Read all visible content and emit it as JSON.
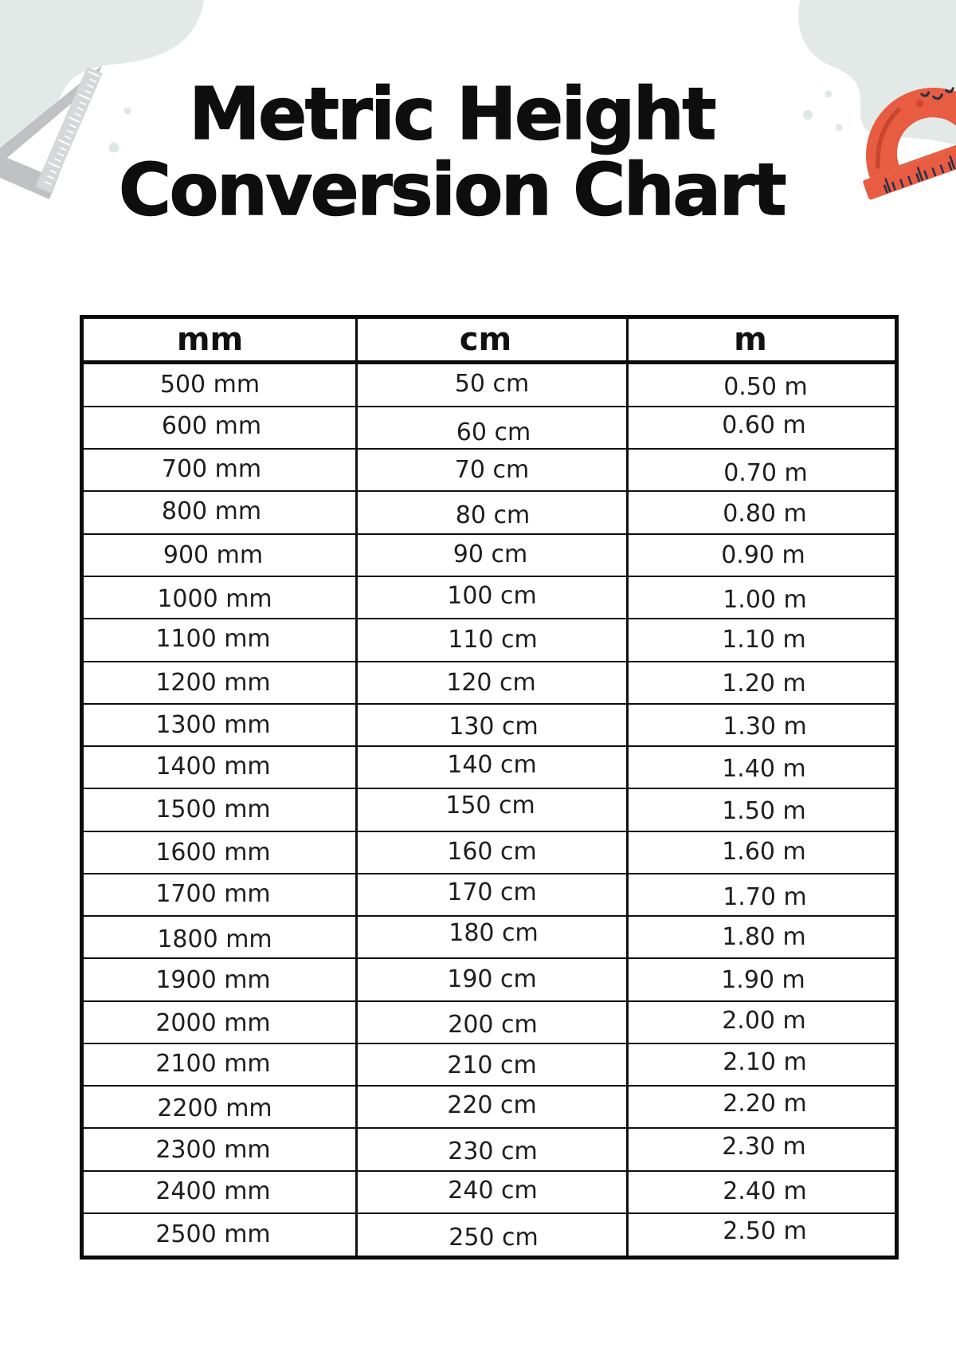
{
  "title": {
    "line1": "Metric Height",
    "line2": "Conversion Chart"
  },
  "table": {
    "columns": [
      "mm",
      "cm",
      "m"
    ],
    "rows": [
      [
        "500 mm",
        "50 cm",
        "0.50 m"
      ],
      [
        "600 mm",
        "60 cm",
        "0.60 m"
      ],
      [
        "700 mm",
        "70 cm",
        "0.70 m"
      ],
      [
        "800 mm",
        "80 cm",
        "0.80 m"
      ],
      [
        "900 mm",
        "90 cm",
        "0.90 m"
      ],
      [
        "1000 mm",
        "100 cm",
        "1.00 m"
      ],
      [
        "1100 mm",
        "110 cm",
        "1.10 m"
      ],
      [
        "1200 mm",
        "120 cm",
        "1.20 m"
      ],
      [
        "1300 mm",
        "130 cm",
        "1.30 m"
      ],
      [
        "1400 mm",
        "140 cm",
        "1.40 m"
      ],
      [
        "1500 mm",
        "150 cm",
        "1.50 m"
      ],
      [
        "1600 mm",
        "160 cm",
        "1.60 m"
      ],
      [
        "1700 mm",
        "170 cm",
        "1.70 m"
      ],
      [
        "1800 mm",
        "180 cm",
        "1.80 m"
      ],
      [
        "1900 mm",
        "190 cm",
        "1.90 m"
      ],
      [
        "2000 mm",
        "200 cm",
        "2.00 m"
      ],
      [
        "2100 mm",
        "210 cm",
        "2.10 m"
      ],
      [
        "2200 mm",
        "220 cm",
        "2.20 m"
      ],
      [
        "2300 mm",
        "230 cm",
        "2.30 m"
      ],
      [
        "2400 mm",
        "240 cm",
        "2.40 m"
      ],
      [
        "2500 mm",
        "250 cm",
        "2.50 m"
      ]
    ]
  },
  "decorations": {
    "icons": [
      "set-square-ruler-icon",
      "protractor-icon"
    ],
    "blob_color": "#E3E9E6",
    "dot_color": "#DFE8E4",
    "ruler_gray": "#BFC1C3",
    "ruler_band_gray": "#D5D7D8",
    "ruler_tick_white": "#FFFFFF",
    "protractor_coral": "#E85C42",
    "protractor_accent": "#C8462E",
    "protractor_blush": "#D0452E",
    "tick_navy": "#233049",
    "title_color": "#0E0E0E",
    "border_color": "#0B0B0B",
    "text_color": "#1E1E1E"
  }
}
